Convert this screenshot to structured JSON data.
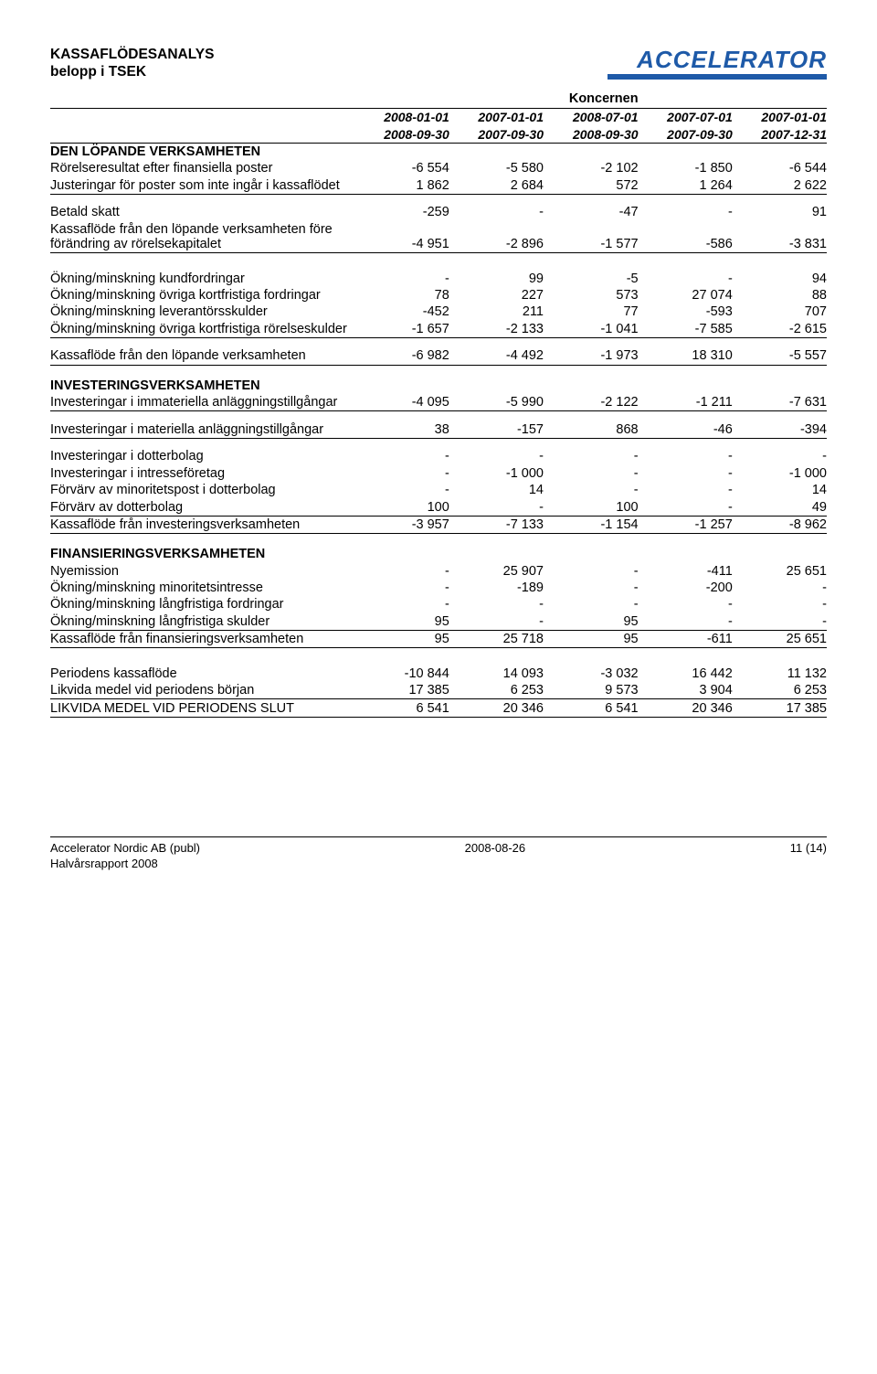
{
  "logo": {
    "text": "ACCELERATOR"
  },
  "title": {
    "line1": "KASSAFLÖDESANALYS",
    "line2": "belopp i TSEK"
  },
  "group_heading": "Koncernen",
  "periods": {
    "c1a": "2008-01-01",
    "c1b": "2008-09-30",
    "c2a": "2007-01-01",
    "c2b": "2007-09-30",
    "c3a": "2008-07-01",
    "c3b": "2008-09-30",
    "c4a": "2007-07-01",
    "c4b": "2007-09-30",
    "c5a": "2007-01-01",
    "c5b": "2007-12-31"
  },
  "sections": {
    "op_heading": "DEN LÖPANDE VERKSAMHETEN",
    "inv_heading": "INVESTERINGSVERKSAMHETEN",
    "fin_heading": "FINANSIERINGSVERKSAMHETEN"
  },
  "rows": {
    "r1": {
      "label": "Rörelseresultat efter finansiella poster",
      "v": [
        "-6 554",
        "-5 580",
        "-2 102",
        "-1 850",
        "-6 544"
      ]
    },
    "r2": {
      "label": "Justeringar för poster som inte ingår i kassaflödet",
      "v": [
        "1 862",
        "2 684",
        "572",
        "1 264",
        "2 622"
      ]
    },
    "r3": {
      "label": "Betald skatt",
      "v": [
        "-259",
        "-",
        "-47",
        "-",
        "91"
      ]
    },
    "r4": {
      "label": "Kassaflöde från den löpande verksamheten före förändring av rörelsekapitalet",
      "v": [
        "-4 951",
        "-2 896",
        "-1 577",
        "-586",
        "-3 831"
      ]
    },
    "r5": {
      "label": "Ökning/minskning kundfordringar",
      "v": [
        "-",
        "99",
        "-5",
        "-",
        "94"
      ]
    },
    "r6": {
      "label": "Ökning/minskning övriga kortfristiga fordringar",
      "v": [
        "78",
        "227",
        "573",
        "27 074",
        "88"
      ]
    },
    "r7": {
      "label": "Ökning/minskning leverantörsskulder",
      "v": [
        "-452",
        "211",
        "77",
        "-593",
        "707"
      ]
    },
    "r8": {
      "label": "Ökning/minskning övriga kortfristiga rörelseskulder",
      "v": [
        "-1 657",
        "-2 133",
        "-1 041",
        "-7 585",
        "-2 615"
      ]
    },
    "r9": {
      "label": "Kassaflöde från den löpande verksamheten",
      "v": [
        "-6 982",
        "-4 492",
        "-1 973",
        "18 310",
        "-5 557"
      ]
    },
    "r10": {
      "label": "Investeringar i immateriella anläggningstillgångar",
      "v": [
        "-4 095",
        "-5 990",
        "-2 122",
        "-1 211",
        "-7 631"
      ]
    },
    "r11": {
      "label": "Investeringar i materiella anläggningstillgångar",
      "v": [
        "38",
        "-157",
        "868",
        "-46",
        "-394"
      ]
    },
    "r12": {
      "label": "Investeringar i dotterbolag",
      "v": [
        "-",
        "-",
        "-",
        "-",
        "-"
      ]
    },
    "r13": {
      "label": "Investeringar i intresseföretag",
      "v": [
        "-",
        "-1 000",
        "-",
        "-",
        "-1 000"
      ]
    },
    "r14": {
      "label": "Förvärv av minoritetspost i dotterbolag",
      "v": [
        "-",
        "14",
        "-",
        "-",
        "14"
      ]
    },
    "r15": {
      "label": "Förvärv av dotterbolag",
      "v": [
        "100",
        "-",
        "100",
        "-",
        "49"
      ]
    },
    "r16": {
      "label": "Kassaflöde från investeringsverksamheten",
      "v": [
        "-3 957",
        "-7 133",
        "-1 154",
        "-1 257",
        "-8 962"
      ]
    },
    "r17": {
      "label": "Nyemission",
      "v": [
        "-",
        "25 907",
        "-",
        "-411",
        "25 651"
      ]
    },
    "r18": {
      "label": "Ökning/minskning minoritetsintresse",
      "v": [
        "-",
        "-189",
        "-",
        "-200",
        "-"
      ]
    },
    "r19": {
      "label": "Ökning/minskning långfristiga fordringar",
      "v": [
        "-",
        "-",
        "-",
        "-",
        "-"
      ]
    },
    "r20": {
      "label": "Ökning/minskning långfristiga skulder",
      "v": [
        "95",
        "-",
        "95",
        "-",
        "-"
      ]
    },
    "r21": {
      "label": "Kassaflöde från finansieringsverksamheten",
      "v": [
        "95",
        "25 718",
        "95",
        "-611",
        "25 651"
      ]
    },
    "r22": {
      "label": "Periodens kassaflöde",
      "v": [
        "-10 844",
        "14 093",
        "-3 032",
        "16 442",
        "11 132"
      ]
    },
    "r23": {
      "label": "Likvida medel vid periodens början",
      "v": [
        "17 385",
        "6 253",
        "9 573",
        "3 904",
        "6 253"
      ]
    },
    "r24": {
      "label": "LIKVIDA MEDEL VID PERIODENS SLUT",
      "v": [
        "6 541",
        "20 346",
        "6 541",
        "20 346",
        "17 385"
      ]
    }
  },
  "footer": {
    "company": "Accelerator Nordic AB (publ)",
    "report": "Halvårsrapport 2008",
    "date": "2008-08-26",
    "page": "11 (14)"
  }
}
